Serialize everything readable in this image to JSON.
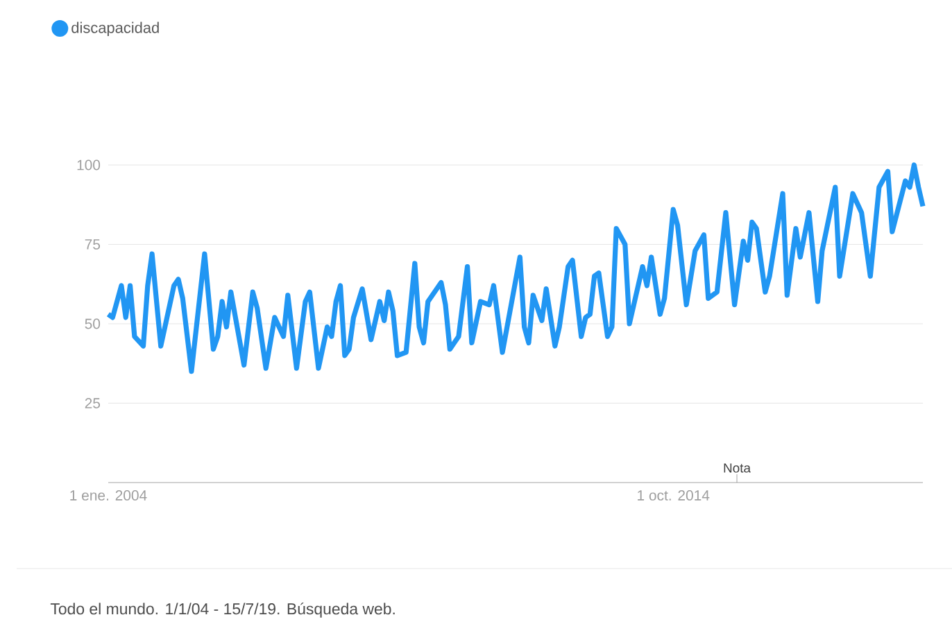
{
  "chart_data": {
    "type": "line",
    "annotations": [
      "Nota",
      "Todo el mundo. 1/1/04 - 15/7/19. Búsqueda web."
    ],
    "xlim": [
      "2004-01",
      "2019-07"
    ],
    "xticks": [
      {
        "value": "2004-01-01",
        "label": "1 ene. 2004"
      },
      {
        "value": "2014-10-01",
        "label": "1 oct. 2014"
      }
    ],
    "ylim": [
      0,
      100
    ],
    "yticks": [
      25,
      50,
      75,
      100
    ],
    "grid": "y",
    "legend": "top left",
    "marker": "none",
    "line_style": "solid",
    "series": [
      {
        "name": "discapacidad",
        "color": "#2196f3",
        "x": [
          "2004-01",
          "2004-02",
          "2004-04",
          "2004-05",
          "2004-06",
          "2004-07",
          "2004-09",
          "2004-10",
          "2004-11",
          "2005-01",
          "2005-04",
          "2005-05",
          "2005-06",
          "2005-08",
          "2005-11",
          "2006-01",
          "2006-02",
          "2006-03",
          "2006-04",
          "2006-05",
          "2006-08",
          "2006-10",
          "2006-11",
          "2007-01",
          "2007-03",
          "2007-05",
          "2007-06",
          "2007-08",
          "2007-10",
          "2007-11",
          "2008-01",
          "2008-03",
          "2008-04",
          "2008-05",
          "2008-06",
          "2008-07",
          "2008-08",
          "2008-09",
          "2008-11",
          "2009-01",
          "2009-03",
          "2009-04",
          "2009-05",
          "2009-06",
          "2009-07",
          "2009-09",
          "2009-11",
          "2009-12",
          "2010-01",
          "2010-02",
          "2010-05",
          "2010-06",
          "2010-07",
          "2010-09",
          "2010-11",
          "2010-12",
          "2011-02",
          "2011-04",
          "2011-05",
          "2011-07",
          "2011-11",
          "2011-12",
          "2012-01",
          "2012-02",
          "2012-04",
          "2012-05",
          "2012-07",
          "2012-08",
          "2012-10",
          "2012-11",
          "2013-01",
          "2013-02",
          "2013-03",
          "2013-04",
          "2013-05",
          "2013-07",
          "2013-08",
          "2013-09",
          "2013-11",
          "2013-12",
          "2014-03",
          "2014-04",
          "2014-05",
          "2014-07",
          "2014-08",
          "2014-10",
          "2014-11",
          "2015-01",
          "2015-03",
          "2015-05",
          "2015-06",
          "2015-08",
          "2015-10",
          "2015-12",
          "2016-02",
          "2016-03",
          "2016-04",
          "2016-05",
          "2016-07",
          "2016-08",
          "2016-11",
          "2016-12",
          "2017-02",
          "2017-03",
          "2017-05",
          "2017-07",
          "2017-08",
          "2017-11",
          "2017-12",
          "2018-03",
          "2018-05",
          "2018-07",
          "2018-09",
          "2018-11",
          "2018-12",
          "2019-03",
          "2019-04",
          "2019-05",
          "2019-06",
          "2019-07"
        ],
        "values": [
          53,
          52,
          62,
          52,
          62,
          46,
          43,
          62,
          72,
          43,
          62,
          64,
          58,
          35,
          72,
          42,
          46,
          57,
          49,
          60,
          37,
          60,
          55,
          36,
          52,
          46,
          59,
          36,
          57,
          60,
          36,
          49,
          46,
          57,
          62,
          40,
          42,
          52,
          61,
          45,
          57,
          51,
          60,
          54,
          40,
          41,
          69,
          49,
          44,
          57,
          63,
          56,
          42,
          46,
          68,
          44,
          57,
          56,
          62,
          41,
          71,
          49,
          44,
          59,
          51,
          61,
          43,
          49,
          68,
          70,
          46,
          52,
          53,
          65,
          66,
          46,
          49,
          80,
          75,
          50,
          68,
          62,
          71,
          53,
          58,
          86,
          81,
          56,
          73,
          78,
          58,
          60,
          85,
          56,
          76,
          70,
          82,
          80,
          60,
          65,
          91,
          59,
          80,
          71,
          85,
          57,
          73,
          93,
          65,
          91,
          85,
          65,
          93,
          98,
          79,
          95,
          93,
          100,
          93,
          87
        ]
      }
    ]
  }
}
